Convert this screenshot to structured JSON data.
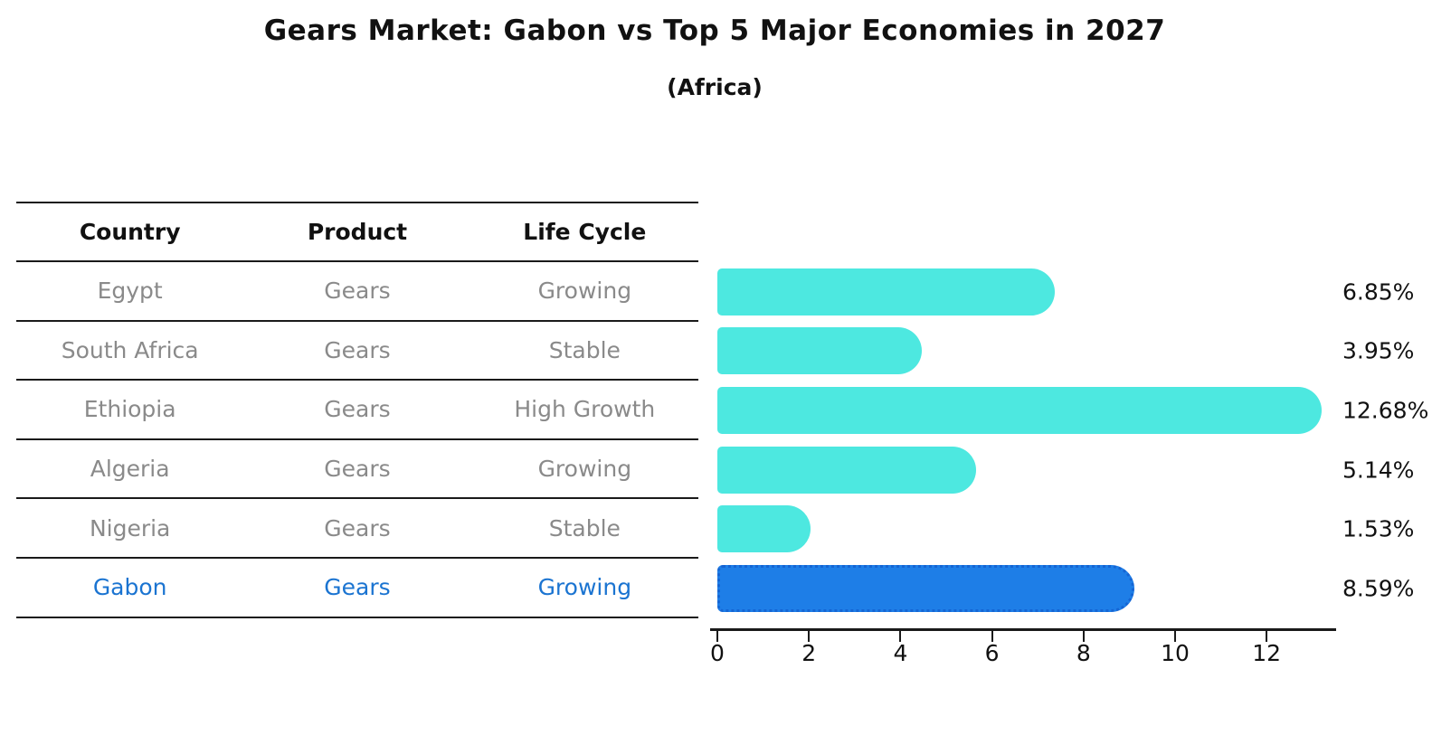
{
  "title": "Gears Market: Gabon vs Top 5 Major Economies in 2027",
  "subtitle": "(Africa)",
  "table": {
    "columns": [
      "Country",
      "Product",
      "Life Cycle"
    ],
    "rows": [
      {
        "country": "Egypt",
        "product": "Gears",
        "life_cycle": "Growing",
        "highlight": false
      },
      {
        "country": "South Africa",
        "product": "Gears",
        "life_cycle": "Stable",
        "highlight": false
      },
      {
        "country": "Ethiopia",
        "product": "Gears",
        "life_cycle": "High Growth",
        "highlight": false
      },
      {
        "country": "Algeria",
        "product": "Gears",
        "life_cycle": "Growing",
        "highlight": false
      },
      {
        "country": "Nigeria",
        "product": "Gears",
        "life_cycle": "Stable",
        "highlight": false
      },
      {
        "country": "Gabon",
        "product": "Gears",
        "life_cycle": "Growing",
        "highlight": true
      }
    ]
  },
  "chart_data": {
    "type": "bar",
    "orientation": "horizontal",
    "title": "Gears Market: Gabon vs Top 5 Major Economies in 2027",
    "subtitle": "(Africa)",
    "categories": [
      "Egypt",
      "South Africa",
      "Ethiopia",
      "Algeria",
      "Nigeria",
      "Gabon"
    ],
    "values": [
      6.85,
      3.95,
      12.68,
      5.14,
      1.53,
      8.59
    ],
    "value_labels": [
      "6.85%",
      "3.95%",
      "12.68%",
      "5.14%",
      "1.53%",
      "8.59%"
    ],
    "x_ticks": [
      "0",
      "2",
      "4",
      "6",
      "8",
      "10",
      "12"
    ],
    "x_tick_values": [
      0,
      2,
      4,
      6,
      8,
      10,
      12
    ],
    "xlim": [
      0,
      13.5
    ],
    "grid": false,
    "legend": "none",
    "highlight_index": 5,
    "bar_color": "#4DE8E0",
    "highlight_bar_color": "#1E7EE7",
    "highlight_bar_border": "#1565D4"
  },
  "colors": {
    "table_text": "#8A8A8A",
    "table_header_text": "#111111",
    "highlight_text": "#1B74D1",
    "axis": "#1A1A1A",
    "value_label": "#111111"
  }
}
